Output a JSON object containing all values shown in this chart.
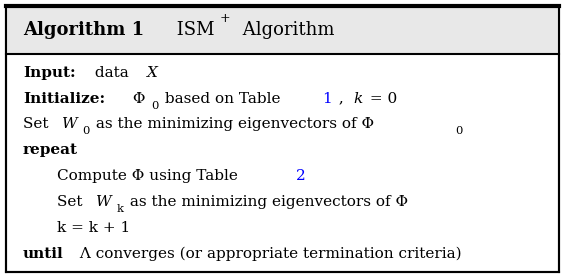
{
  "title": "Algorithm 1",
  "title_suffix": " ISM",
  "title_superscript": "+",
  "title_end": " Algorithm",
  "bg_color": "#ffffff",
  "border_color": "#000000",
  "header_bg": "#d3d3d3",
  "figsize": [
    5.72,
    2.78
  ],
  "dpi": 100,
  "lines": [
    {
      "indent": 0,
      "parts": [
        {
          "text": "Input:",
          "bold": true,
          "italic": false,
          "color": "black"
        },
        {
          "text": " data ",
          "bold": false,
          "italic": false,
          "color": "black"
        },
        {
          "text": "X",
          "bold": false,
          "italic": true,
          "color": "black"
        }
      ]
    },
    {
      "indent": 0,
      "parts": [
        {
          "text": "Initialize:",
          "bold": true,
          "italic": false,
          "color": "black"
        },
        {
          "text": " Φ",
          "bold": false,
          "italic": false,
          "color": "black"
        },
        {
          "text": "0",
          "bold": false,
          "italic": false,
          "color": "black",
          "sub": true
        },
        {
          "text": " based on Table ",
          "bold": false,
          "italic": false,
          "color": "black"
        },
        {
          "text": "1",
          "bold": false,
          "italic": false,
          "color": "blue"
        },
        {
          "text": " , ",
          "bold": false,
          "italic": false,
          "color": "black"
        },
        {
          "text": "k",
          "bold": false,
          "italic": true,
          "color": "black"
        },
        {
          "text": " = 0",
          "bold": false,
          "italic": false,
          "color": "black"
        }
      ]
    },
    {
      "indent": 0,
      "parts": [
        {
          "text": "Set ",
          "bold": false,
          "italic": false,
          "color": "black"
        },
        {
          "text": "W",
          "bold": false,
          "italic": true,
          "color": "black"
        },
        {
          "text": "0",
          "bold": false,
          "italic": false,
          "color": "black",
          "sub": true
        },
        {
          "text": " as the minimizing eigenvectors of Φ",
          "bold": false,
          "italic": false,
          "color": "black"
        },
        {
          "text": "0",
          "bold": false,
          "italic": false,
          "color": "black",
          "sub": true
        }
      ]
    },
    {
      "indent": 0,
      "parts": [
        {
          "text": "repeat",
          "bold": true,
          "italic": false,
          "color": "black"
        }
      ]
    },
    {
      "indent": 1,
      "parts": [
        {
          "text": "Compute Φ using Table ",
          "bold": false,
          "italic": false,
          "color": "black"
        },
        {
          "text": "2",
          "bold": false,
          "italic": false,
          "color": "blue"
        }
      ]
    },
    {
      "indent": 1,
      "parts": [
        {
          "text": "Set ",
          "bold": false,
          "italic": false,
          "color": "black"
        },
        {
          "text": "W",
          "bold": false,
          "italic": true,
          "color": "black"
        },
        {
          "text": "k",
          "bold": false,
          "italic": false,
          "color": "black",
          "sub": true
        },
        {
          "text": " as the minimizing eigenvectors of Φ",
          "bold": false,
          "italic": false,
          "color": "black"
        }
      ]
    },
    {
      "indent": 1,
      "parts": [
        {
          "text": "k = k + 1",
          "bold": false,
          "italic": false,
          "color": "black"
        }
      ]
    },
    {
      "indent": 0,
      "parts": [
        {
          "text": "until",
          "bold": true,
          "italic": false,
          "color": "black"
        },
        {
          "text": " Λ converges (or appropriate termination criteria)",
          "bold": false,
          "italic": false,
          "color": "black"
        }
      ]
    }
  ]
}
